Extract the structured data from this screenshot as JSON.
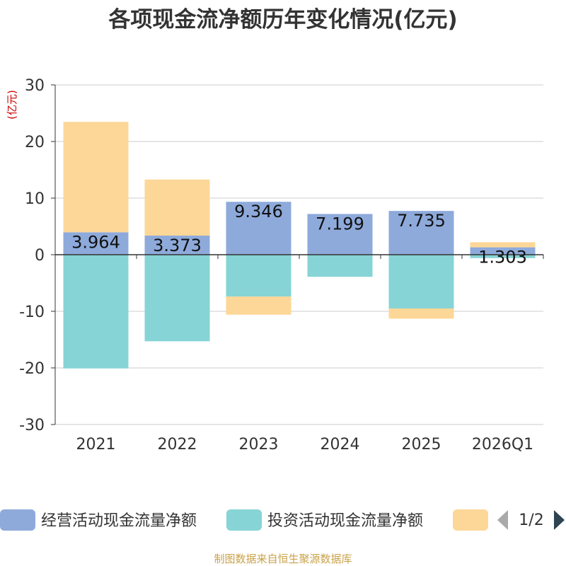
{
  "chart_data": {
    "type": "bar",
    "stacked": true,
    "title": "各项现金流净额历年变化情况(亿元)",
    "ylabel": "(亿元)",
    "categories": [
      "2021",
      "2022",
      "2023",
      "2024",
      "2025",
      "2026Q1"
    ],
    "ylim": [
      -30,
      30
    ],
    "yticks": [
      30,
      20,
      10,
      0,
      -10,
      -20,
      -30
    ],
    "grid": true,
    "series": [
      {
        "name": "经营活动现金流量净额",
        "color": "#8eaadb",
        "values": [
          3.964,
          3.373,
          9.346,
          7.199,
          7.735,
          1.303
        ],
        "labels": [
          "3.964",
          "3.373",
          "9.346",
          "7.199",
          "7.735",
          "1.303"
        ]
      },
      {
        "name": "投资活动现金流量净额",
        "color": "#86d4d6",
        "values": [
          -20.1,
          -15.3,
          -7.4,
          -3.9,
          -9.5,
          -0.6
        ]
      },
      {
        "name": "",
        "color": "#fdd797",
        "values": [
          19.5,
          9.9,
          -3.2,
          0,
          -1.8,
          0.9
        ]
      }
    ],
    "legend": {
      "position": "bottom",
      "page": "1/2"
    }
  },
  "footer": "制图数据来自恒生聚源数据库",
  "colors": {
    "title": "#333333",
    "axis": "#333333",
    "grid": "#cccccc",
    "unit": "#cc0000",
    "footer": "#c9a24a",
    "pager": "#2f4554",
    "pager_disabled": "#aaaaaa"
  }
}
